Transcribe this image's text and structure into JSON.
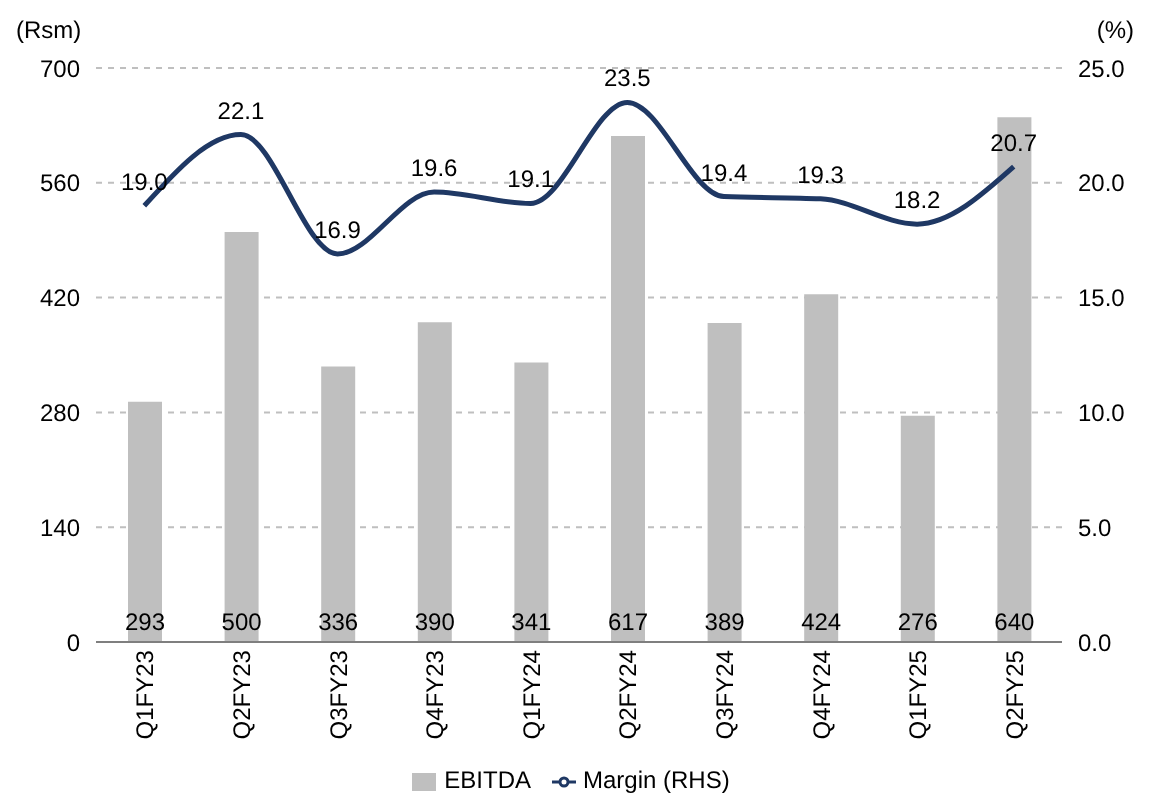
{
  "chart_data": {
    "type": "bar",
    "ylabel": "(Rsm)",
    "y2label": "(%)",
    "categories": [
      "Q1FY23",
      "Q2FY23",
      "Q3FY23",
      "Q4FY23",
      "Q1FY24",
      "Q2FY24",
      "Q3FY24",
      "Q4FY24",
      "Q1FY25",
      "Q2FY25"
    ],
    "series": [
      {
        "name": "EBITDA",
        "color": "#bfbfbf",
        "values": [
          293,
          500,
          336,
          390,
          341,
          617,
          389,
          424,
          276,
          640
        ],
        "value_labels": [
          "293",
          "500",
          "336",
          "390",
          "341",
          "617",
          "389",
          "424",
          "276",
          "640"
        ]
      },
      {
        "name": "Margin (RHS)",
        "type": "line",
        "axis": "y2",
        "color": "#1f3864",
        "values": [
          19.0,
          22.1,
          16.9,
          19.6,
          19.1,
          23.5,
          19.4,
          19.3,
          18.2,
          20.7
        ],
        "value_labels": [
          "19.0",
          "22.1",
          "16.9",
          "19.6",
          "19.1",
          "23.5",
          "19.4",
          "19.3",
          "18.2",
          "20.7"
        ]
      }
    ],
    "ylim": [
      0,
      700
    ],
    "yticks": [
      0,
      140,
      280,
      420,
      560,
      700
    ],
    "y2lim": [
      0,
      25
    ],
    "y2ticks": [
      {
        "value": 0,
        "label": "0.0"
      },
      {
        "value": 5,
        "label": "5.0"
      },
      {
        "value": 10,
        "label": "10.0"
      },
      {
        "value": 15,
        "label": "15.0"
      },
      {
        "value": 20,
        "label": "20.0"
      },
      {
        "value": 25,
        "label": "25.0"
      }
    ],
    "grid": "y",
    "legend": "bottom",
    "marker": "none",
    "line_style": "solid"
  }
}
